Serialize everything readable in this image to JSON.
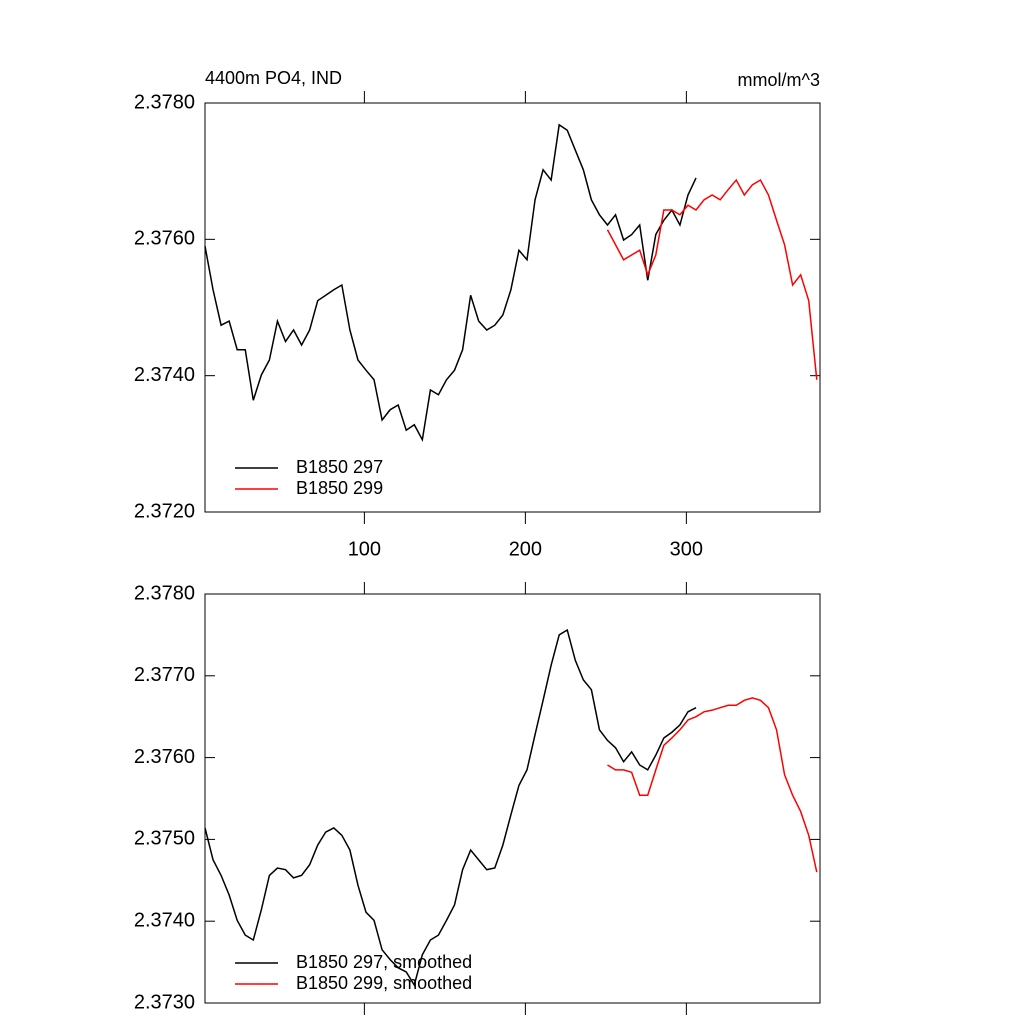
{
  "chart_data": [
    {
      "type": "line",
      "title": "4400m PO4, IND",
      "units": "mmol/m^3",
      "x": [
        1,
        6,
        11,
        16,
        21,
        26,
        31,
        36,
        41,
        46,
        51,
        56,
        61,
        66,
        71,
        76,
        81,
        86,
        91,
        96,
        101,
        106,
        111,
        116,
        121,
        126,
        131,
        136,
        141,
        146,
        151,
        156,
        161,
        166,
        171,
        176,
        181,
        186,
        191,
        196,
        201,
        206,
        211,
        216,
        221,
        226,
        231,
        236,
        241,
        246,
        251,
        256,
        261,
        266,
        271,
        276,
        281,
        286,
        291,
        296,
        301,
        306,
        311,
        316,
        321,
        326,
        331,
        336,
        341,
        346,
        351,
        356,
        361,
        366,
        371,
        376,
        381
      ],
      "series": [
        {
          "name": "B1850 297",
          "color": "#000000",
          "values": [
            2.3759,
            2.37526,
            2.37474,
            2.3748,
            2.37438,
            2.37438,
            2.37364,
            2.37401,
            2.37423,
            2.3748,
            2.3745,
            2.37467,
            2.37445,
            2.37467,
            2.3751,
            2.37518,
            2.37526,
            2.37533,
            2.37467,
            2.37423,
            2.37408,
            2.37394,
            2.37335,
            2.3735,
            2.37357,
            2.3732,
            2.37328,
            2.37306,
            2.37379,
            2.37372,
            2.37394,
            2.37408,
            2.37438,
            2.37518,
            2.3748,
            2.37467,
            2.37474,
            2.37489,
            2.37526,
            2.37584,
            2.3757,
            2.37658,
            2.37702,
            2.37687,
            2.37768,
            2.3776,
            2.37731,
            2.37702,
            2.37658,
            2.37636,
            2.37621,
            2.37636,
            2.37599,
            2.37607,
            2.37621,
            2.3754,
            2.37607,
            2.37628,
            2.37643,
            2.37621,
            2.37665,
            2.3769,
            null,
            null,
            null,
            null,
            null,
            null,
            null,
            null,
            null,
            null,
            null,
            null,
            null,
            null,
            null
          ]
        },
        {
          "name": "B1850 299",
          "color": "#ff0000",
          "values": [
            null,
            null,
            null,
            null,
            null,
            null,
            null,
            null,
            null,
            null,
            null,
            null,
            null,
            null,
            null,
            null,
            null,
            null,
            null,
            null,
            null,
            null,
            null,
            null,
            null,
            null,
            null,
            null,
            null,
            null,
            null,
            null,
            null,
            null,
            null,
            null,
            null,
            null,
            null,
            null,
            null,
            null,
            null,
            null,
            null,
            null,
            null,
            null,
            null,
            null,
            2.37614,
            2.37592,
            2.3757,
            2.37577,
            2.37584,
            2.37548,
            2.37577,
            2.37643,
            2.37643,
            2.37636,
            2.3765,
            2.37643,
            2.37658,
            2.37665,
            2.37658,
            2.37673,
            2.37687,
            2.37665,
            2.3768,
            2.37687,
            2.37665,
            2.37628,
            2.37592,
            2.37533,
            2.37548,
            2.3751,
            2.37394
          ]
        }
      ],
      "xlim": [
        1,
        383
      ],
      "xticks": [
        100,
        200,
        300
      ],
      "ylim": [
        2.372,
        2.378
      ],
      "yticks": [
        {
          "value": 2.372,
          "label": "2.3720"
        },
        {
          "value": 2.374,
          "label": "2.3740"
        },
        {
          "value": 2.376,
          "label": "2.3760"
        },
        {
          "value": 2.378,
          "label": "2.3780"
        }
      ],
      "legend": "lower left"
    },
    {
      "type": "line",
      "x": [
        1,
        6,
        11,
        16,
        21,
        26,
        31,
        36,
        41,
        46,
        51,
        56,
        61,
        66,
        71,
        76,
        81,
        86,
        91,
        96,
        101,
        106,
        111,
        116,
        121,
        126,
        131,
        136,
        141,
        146,
        151,
        156,
        161,
        166,
        171,
        176,
        181,
        186,
        191,
        196,
        201,
        206,
        211,
        216,
        221,
        226,
        231,
        236,
        241,
        246,
        251,
        256,
        261,
        266,
        271,
        276,
        281,
        286,
        291,
        296,
        301,
        306,
        311,
        316,
        321,
        326,
        331,
        336,
        341,
        346,
        351,
        356,
        361,
        366,
        371,
        376,
        381
      ],
      "series": [
        {
          "name": "B1850 297, smoothed",
          "color": "#000000",
          "values": [
            2.37514,
            2.37475,
            2.37456,
            2.37432,
            2.37401,
            2.37383,
            2.37377,
            2.37414,
            2.37456,
            2.37465,
            2.37463,
            2.37453,
            2.37456,
            2.37469,
            2.37493,
            2.37509,
            2.37514,
            2.37505,
            2.37487,
            2.37444,
            2.37411,
            2.37401,
            2.37365,
            2.37353,
            2.37343,
            2.37338,
            2.37322,
            2.37359,
            2.37377,
            2.37383,
            2.37401,
            2.3742,
            2.37463,
            2.37487,
            2.37475,
            2.37463,
            2.37465,
            2.37493,
            2.3753,
            2.37566,
            2.37585,
            2.37628,
            2.3767,
            2.37713,
            2.3775,
            2.37756,
            2.37719,
            2.37695,
            2.37683,
            2.37634,
            2.37621,
            2.37612,
            2.37595,
            2.37607,
            2.37591,
            2.37585,
            2.37603,
            2.37624,
            2.37631,
            2.3764,
            2.37656,
            2.37661,
            null,
            null,
            null,
            null,
            null,
            null,
            null,
            null,
            null,
            null,
            null,
            null,
            null,
            null,
            null
          ]
        },
        {
          "name": "B1850 299, smoothed",
          "color": "#ff0000",
          "values": [
            null,
            null,
            null,
            null,
            null,
            null,
            null,
            null,
            null,
            null,
            null,
            null,
            null,
            null,
            null,
            null,
            null,
            null,
            null,
            null,
            null,
            null,
            null,
            null,
            null,
            null,
            null,
            null,
            null,
            null,
            null,
            null,
            null,
            null,
            null,
            null,
            null,
            null,
            null,
            null,
            null,
            null,
            null,
            null,
            null,
            null,
            null,
            null,
            null,
            null,
            2.37591,
            2.37585,
            2.37585,
            2.37582,
            2.37554,
            2.37554,
            2.37585,
            2.37615,
            2.37624,
            2.37634,
            2.37646,
            2.3765,
            2.37656,
            2.37658,
            2.37661,
            2.37664,
            2.37664,
            2.3767,
            2.37673,
            2.3767,
            2.37661,
            2.37634,
            2.37579,
            2.37554,
            2.37534,
            2.37505,
            2.3746
          ]
        }
      ],
      "xlim": [
        1,
        383
      ],
      "xticks": [
        100,
        200,
        300
      ],
      "ylim": [
        2.373,
        2.378
      ],
      "yticks": [
        {
          "value": 2.373,
          "label": "2.3730"
        },
        {
          "value": 2.374,
          "label": "2.3740"
        },
        {
          "value": 2.375,
          "label": "2.3750"
        },
        {
          "value": 2.376,
          "label": "2.3760"
        },
        {
          "value": 2.377,
          "label": "2.3770"
        },
        {
          "value": 2.378,
          "label": "2.3780"
        }
      ],
      "legend": "lower left"
    }
  ]
}
